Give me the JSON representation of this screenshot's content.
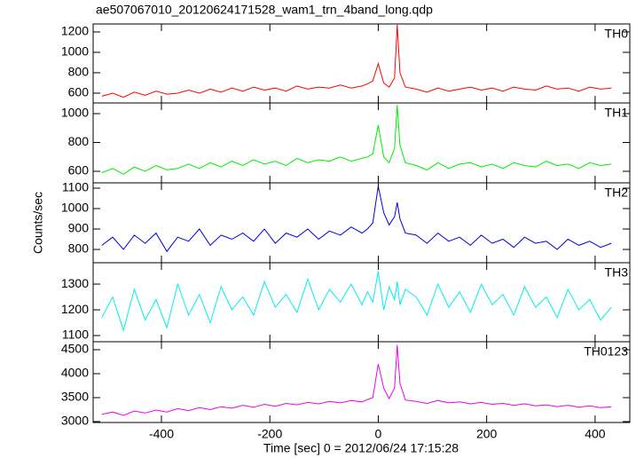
{
  "title": "ae507067010_20120624171528_wam1_trn_4band_long.qdp",
  "xlabel": "Time [sec] 0 = 2012/06/24 17:15:28",
  "ylabel": "Counts/sec",
  "xlim": [
    -526,
    464
  ],
  "xticks": [
    -400,
    -200,
    0,
    200,
    400
  ],
  "x": [
    -510,
    -490,
    -470,
    -450,
    -430,
    -410,
    -390,
    -370,
    -350,
    -330,
    -310,
    -290,
    -270,
    -250,
    -230,
    -210,
    -190,
    -170,
    -150,
    -130,
    -110,
    -90,
    -70,
    -50,
    -30,
    -20,
    -10,
    0,
    10,
    20,
    30,
    35,
    40,
    50,
    70,
    90,
    110,
    130,
    150,
    170,
    190,
    210,
    230,
    250,
    270,
    290,
    310,
    330,
    350,
    370,
    390,
    410,
    430
  ],
  "chart_data": [
    {
      "type": "line",
      "ylim": [
        504,
        1278
      ],
      "yticks": [
        600,
        800,
        1000,
        1200
      ],
      "series": [
        {
          "name": "TH0",
          "color": "#ff0000",
          "values": [
            570,
            600,
            560,
            610,
            580,
            620,
            590,
            600,
            630,
            600,
            640,
            610,
            650,
            620,
            660,
            630,
            650,
            620,
            670,
            640,
            660,
            650,
            680,
            650,
            670,
            690,
            720,
            890,
            700,
            660,
            750,
            1270,
            800,
            660,
            640,
            610,
            650,
            620,
            640,
            660,
            630,
            650,
            620,
            660,
            640,
            630,
            670,
            640,
            650,
            620,
            660,
            640,
            650
          ]
        }
      ]
    },
    {
      "type": "line",
      "ylim": [
        520,
        1074
      ],
      "yticks": [
        600,
        800,
        1000
      ],
      "series": [
        {
          "name": "TH1",
          "color": "#00ee00",
          "values": [
            590,
            620,
            580,
            630,
            600,
            640,
            610,
            620,
            650,
            620,
            660,
            630,
            670,
            640,
            680,
            650,
            670,
            640,
            690,
            660,
            680,
            670,
            700,
            670,
            690,
            700,
            720,
            920,
            700,
            660,
            760,
            1060,
            780,
            660,
            640,
            610,
            660,
            620,
            650,
            660,
            630,
            650,
            620,
            660,
            640,
            630,
            670,
            640,
            650,
            620,
            660,
            640,
            650
          ]
        }
      ]
    },
    {
      "type": "line",
      "ylim": [
        735,
        1126
      ],
      "yticks": [
        800,
        900,
        1000,
        1100
      ],
      "series": [
        {
          "name": "TH2",
          "color": "#0000dd",
          "values": [
            820,
            860,
            800,
            870,
            830,
            880,
            790,
            860,
            840,
            900,
            820,
            870,
            850,
            880,
            840,
            900,
            830,
            880,
            860,
            900,
            850,
            890,
            870,
            910,
            880,
            900,
            930,
            1110,
            980,
            920,
            960,
            1030,
            950,
            880,
            870,
            830,
            880,
            840,
            860,
            820,
            870,
            830,
            850,
            810,
            860,
            830,
            840,
            800,
            850,
            820,
            840,
            810,
            830
          ]
        }
      ]
    },
    {
      "type": "line",
      "ylim": [
        1076,
        1383
      ],
      "yticks": [
        1100,
        1200,
        1300
      ],
      "series": [
        {
          "name": "TH3",
          "color": "#00eeee",
          "values": [
            1170,
            1250,
            1120,
            1280,
            1160,
            1240,
            1130,
            1300,
            1180,
            1260,
            1150,
            1290,
            1200,
            1250,
            1180,
            1310,
            1210,
            1260,
            1190,
            1320,
            1200,
            1280,
            1230,
            1300,
            1220,
            1270,
            1230,
            1350,
            1200,
            1290,
            1240,
            1310,
            1220,
            1280,
            1250,
            1180,
            1300,
            1210,
            1270,
            1190,
            1300,
            1220,
            1260,
            1180,
            1290,
            1210,
            1250,
            1170,
            1280,
            1200,
            1240,
            1160,
            1210
          ]
        }
      ]
    },
    {
      "type": "line",
      "ylim": [
        2981,
        4667
      ],
      "yticks": [
        3000,
        3500,
        4000,
        4500
      ],
      "series": [
        {
          "name": "TH0123",
          "color": "#ee00ee",
          "values": [
            3150,
            3200,
            3130,
            3220,
            3180,
            3240,
            3200,
            3270,
            3230,
            3290,
            3250,
            3310,
            3280,
            3340,
            3300,
            3360,
            3320,
            3380,
            3350,
            3400,
            3370,
            3420,
            3390,
            3440,
            3410,
            3460,
            3500,
            4200,
            3700,
            3480,
            3700,
            4600,
            3800,
            3450,
            3420,
            3380,
            3440,
            3390,
            3410,
            3370,
            3400,
            3360,
            3380,
            3340,
            3370,
            3330,
            3350,
            3310,
            3340,
            3300,
            3330,
            3290,
            3310
          ]
        }
      ]
    }
  ]
}
